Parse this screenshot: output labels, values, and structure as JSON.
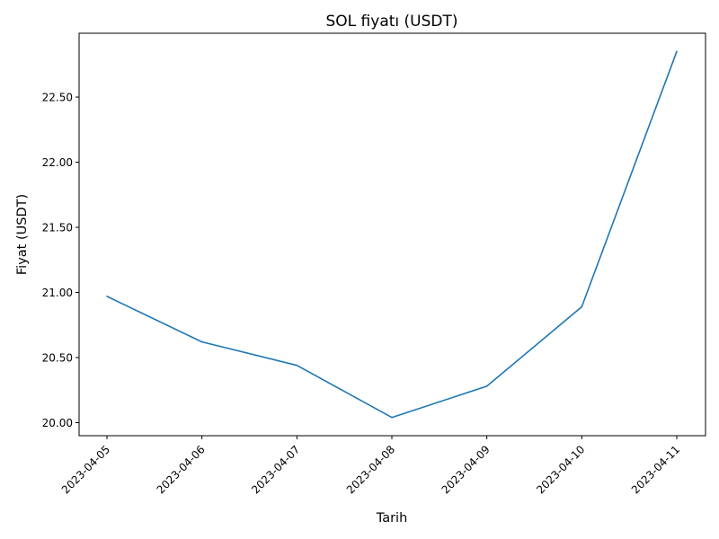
{
  "chart_data": {
    "type": "line",
    "title": "SOL fiyatı (USDT)",
    "xlabel": "Tarih",
    "ylabel": "Fiyat (USDT)",
    "x": [
      "2023-04-05",
      "2023-04-06",
      "2023-04-07",
      "2023-04-08",
      "2023-04-09",
      "2023-04-10",
      "2023-04-11"
    ],
    "series": [
      {
        "values": [
          20.97,
          20.62,
          20.44,
          20.04,
          20.28,
          20.89,
          22.85
        ],
        "color": "#1f77b4"
      }
    ],
    "ylim": [
      19.9,
      22.99
    ],
    "yticks": [
      "20.00",
      "20.50",
      "21.00",
      "21.50",
      "22.00",
      "22.50"
    ],
    "grid": false,
    "legend": "none"
  }
}
